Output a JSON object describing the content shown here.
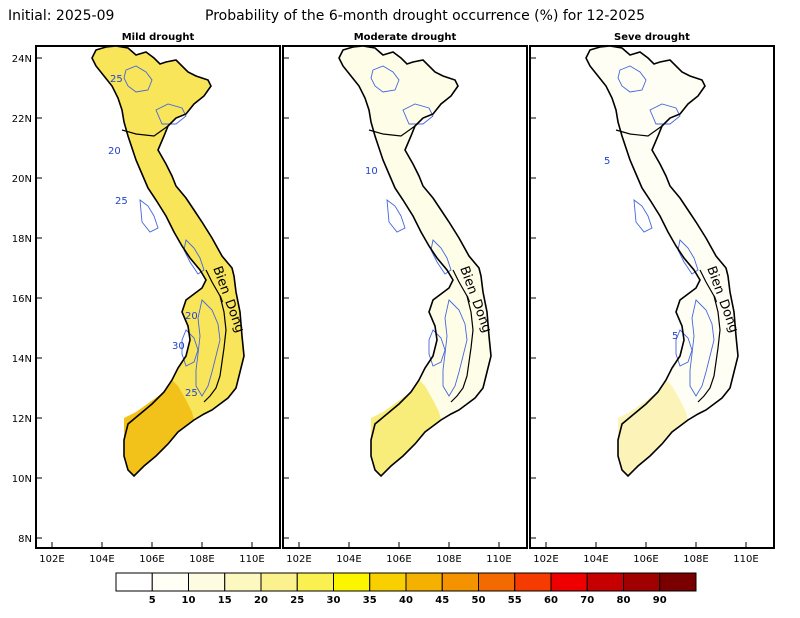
{
  "header": {
    "initial": "Initial: 2025-09",
    "title": "Probability of the 6-month drought occurrence (%) for 12-2025"
  },
  "panels": [
    {
      "title": "Mild drought",
      "fill": "#f8e55a",
      "south_fill": "#f2c21a",
      "contour_labels": [
        "25",
        "20",
        "25",
        "20",
        "30",
        "25"
      ]
    },
    {
      "title": "Moderate drought",
      "fill": "#fefde8",
      "south_fill": "#f8ec7a",
      "contour_labels": [
        "10"
      ]
    },
    {
      "title": "Seve drought",
      "fill": "#fefef4",
      "south_fill": "#fbf3b8",
      "contour_labels": [
        "5",
        "5"
      ]
    }
  ],
  "sea_label": "Bien_Dong",
  "lat_labels": [
    "24N",
    "22N",
    "20N",
    "18N",
    "16N",
    "14N",
    "12N",
    "10N",
    "8N"
  ],
  "lon_labels": [
    "102E",
    "104E",
    "106E",
    "108E",
    "110E"
  ],
  "colorbar": {
    "labels": [
      "5",
      "10",
      "15",
      "20",
      "25",
      "30",
      "35",
      "40",
      "45",
      "50",
      "55",
      "60",
      "70",
      "80",
      "90"
    ],
    "colors": [
      "#ffffff",
      "#fffff5",
      "#fefce0",
      "#fdf8bf",
      "#fcf28d",
      "#faf050",
      "#fbf600",
      "#f8d000",
      "#f5b100",
      "#f49200",
      "#f36a00",
      "#f53b00",
      "#ef0000",
      "#c60000",
      "#a10000",
      "#7a0000"
    ]
  }
}
